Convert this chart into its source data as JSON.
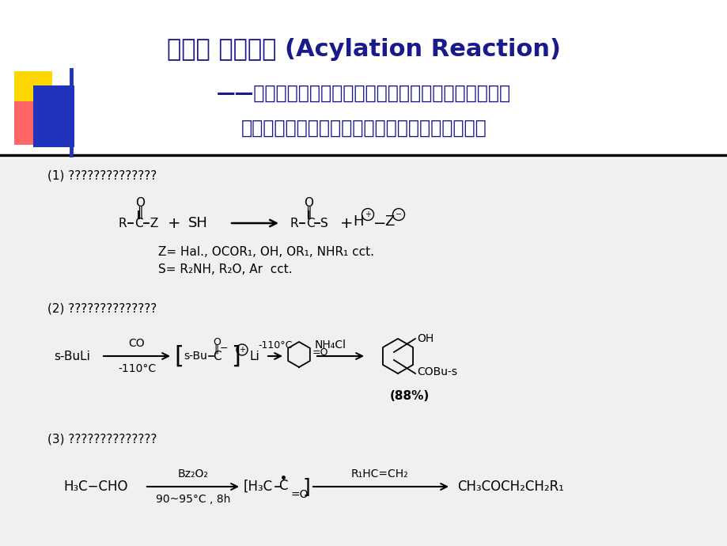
{
  "bg_color": "#f0f0f0",
  "white_bg": "#ffffff",
  "title_color": "#1a1a8c",
  "black": "#000000",
  "title_line1": "第三章 酰化反应 (Acylation Reaction)",
  "title_line2": "——在有机化合物分子中的碳、氧、硫等原子上引入酰基",
  "title_line3": "的反应。酰基的引入可分为直接酰化和间接酰化。",
  "deco_yellow": "#FFD700",
  "deco_red": "#FF6666",
  "deco_blue": "#2233BB",
  "sec1_label": "(1) ??????????????",
  "sec2_label": "(2) ??????????????",
  "sec3_label": "(3) ??????????????",
  "note1": "Z= Hal., OCOR₁, OH, OR₁, NHR₁ cct.",
  "note2": "S= R₂NH, R₂O, Ar  cct.",
  "percent": "(88%)"
}
